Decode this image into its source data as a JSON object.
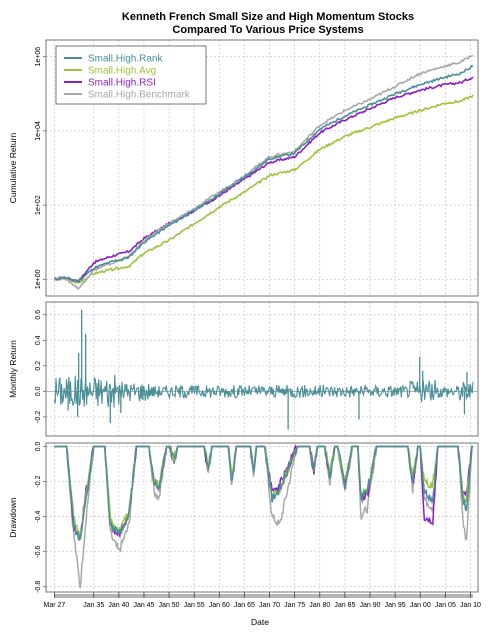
{
  "chart_data": {
    "type": "line",
    "title_lines": [
      "Kenneth French Small Size and High Momentum Stocks",
      "Compared To Various Price Systems"
    ],
    "xlabel": "Date",
    "x_ticks": [
      "Mar 27",
      "Jan 35",
      "Jan 40",
      "Jan 45",
      "Jan 50",
      "Jan 55",
      "Jan 60",
      "Jan 65",
      "Jan 70",
      "Jan 75",
      "Jan 80",
      "Jan 85",
      "Jan 90",
      "Jan 95",
      "Jan 00",
      "Jan 05",
      "Jan 10"
    ],
    "x_tick_years": [
      1927.17,
      1935,
      1940,
      1945,
      1950,
      1955,
      1960,
      1965,
      1970,
      1975,
      1980,
      1985,
      1990,
      1995,
      2000,
      2005,
      2010
    ],
    "xlim": [
      1925.5,
      2011.5
    ],
    "legend": {
      "placement": "top-left",
      "entries": [
        "Small.High.Rank",
        "Small.High.Avg",
        "Small.High.RSI",
        "Small.High.Benchmark"
      ]
    },
    "colors": {
      "rank": "#4a8f98",
      "avg": "#9dc43c",
      "rsi": "#8a1fc4",
      "benchmark": "#a8a8a8"
    },
    "panels": [
      {
        "name": "cumulative",
        "ylabel": "Cumulative Return",
        "scale": "log10",
        "y_ticks": [
          "1e+00",
          "1e+02",
          "1e+04",
          "1e+06"
        ],
        "y_tick_values": [
          0,
          2,
          4,
          6
        ],
        "ylim": [
          -0.45,
          6.45
        ],
        "series": [
          {
            "name": "Small.High.Rank",
            "key": "rank",
            "x": [
              1927.17,
              1929,
              1932,
              1935,
              1938,
              1942,
              1945,
              1950,
              1955,
              1960,
              1965,
              1970,
              1975,
              1980,
              1985,
              1990,
              1995,
              2000,
              2005,
              2008,
              2010.5
            ],
            "log_values": [
              0,
              0.05,
              -0.05,
              0.3,
              0.45,
              0.6,
              1.0,
              1.45,
              1.85,
              2.3,
              2.75,
              3.25,
              3.4,
              4.05,
              4.4,
              4.7,
              5.0,
              5.25,
              5.45,
              5.55,
              5.75
            ]
          },
          {
            "name": "Small.High.Avg",
            "key": "avg",
            "x": [
              1927.17,
              1929,
              1932,
              1935,
              1938,
              1942,
              1945,
              1950,
              1955,
              1960,
              1965,
              1970,
              1975,
              1980,
              1985,
              1990,
              1995,
              2000,
              2005,
              2008,
              2010.5
            ],
            "log_values": [
              0,
              0.02,
              -0.1,
              0.15,
              0.25,
              0.35,
              0.7,
              1.05,
              1.5,
              1.95,
              2.35,
              2.8,
              2.95,
              3.5,
              3.85,
              4.1,
              4.35,
              4.55,
              4.75,
              4.8,
              4.95
            ]
          },
          {
            "name": "Small.High.RSI",
            "key": "rsi",
            "x": [
              1927.17,
              1929,
              1932,
              1935,
              1938,
              1942,
              1945,
              1950,
              1955,
              1960,
              1965,
              1970,
              1975,
              1980,
              1985,
              1990,
              1995,
              2000,
              2005,
              2008,
              2010.5
            ],
            "log_values": [
              0,
              0.05,
              -0.05,
              0.45,
              0.6,
              0.75,
              1.1,
              1.5,
              1.85,
              2.25,
              2.7,
              3.15,
              3.3,
              3.95,
              4.3,
              4.6,
              4.9,
              5.1,
              5.25,
              5.3,
              5.45
            ]
          },
          {
            "name": "Small.High.Benchmark",
            "key": "benchmark",
            "x": [
              1927.17,
              1929,
              1932,
              1935,
              1938,
              1942,
              1945,
              1950,
              1955,
              1960,
              1965,
              1970,
              1975,
              1980,
              1985,
              1990,
              1995,
              2000,
              2005,
              2008,
              2010.5
            ],
            "log_values": [
              0,
              0.05,
              -0.25,
              0.25,
              0.4,
              0.6,
              1.05,
              1.5,
              1.9,
              2.35,
              2.8,
              3.3,
              3.45,
              4.15,
              4.55,
              4.85,
              5.2,
              5.55,
              5.75,
              5.85,
              6.05
            ]
          }
        ]
      },
      {
        "name": "monthly",
        "ylabel": "Monthly Return",
        "y_ticks": [
          "-0.2",
          "0.0",
          "0.2",
          "0.4",
          "0.6"
        ],
        "y_tick_values": [
          -0.2,
          0,
          0.2,
          0.4,
          0.6
        ],
        "ylim": [
          -0.35,
          0.7
        ],
        "series_key": "rank",
        "spikes": [
          {
            "x": 1932.6,
            "y": 0.64
          },
          {
            "x": 1933.4,
            "y": 0.45
          },
          {
            "x": 1931.8,
            "y": -0.2
          },
          {
            "x": 1932.0,
            "y": 0.3
          },
          {
            "x": 1929.9,
            "y": -0.15
          },
          {
            "x": 1938.3,
            "y": -0.25
          },
          {
            "x": 1940.4,
            "y": -0.17
          },
          {
            "x": 1973.7,
            "y": -0.3
          },
          {
            "x": 1987.8,
            "y": -0.22
          },
          {
            "x": 1999.9,
            "y": 0.27
          },
          {
            "x": 2000.5,
            "y": 0.16
          },
          {
            "x": 2008.8,
            "y": -0.18
          },
          {
            "x": 2009.3,
            "y": 0.15
          }
        ]
      },
      {
        "name": "drawdown",
        "ylabel": "Drawdown",
        "y_ticks": [
          "-0.8",
          "-0.6",
          "-0.4",
          "-0.2",
          "0.0"
        ],
        "y_tick_values": [
          -0.8,
          -0.6,
          -0.4,
          -0.2,
          0
        ],
        "ylim": [
          -0.83,
          0.02
        ],
        "episodes": [
          {
            "x": [
              1929.6,
              1931,
              1932.3,
              1933.5,
              1935
            ],
            "rank": [
              0,
              -0.45,
              -0.55,
              -0.3,
              0
            ],
            "avg": [
              0,
              -0.4,
              -0.5,
              -0.28,
              0
            ],
            "rsi": [
              0,
              -0.45,
              -0.52,
              -0.25,
              0
            ],
            "benchmark": [
              0,
              -0.5,
              -0.8,
              -0.4,
              0
            ]
          },
          {
            "x": [
              1937.2,
              1938.3,
              1940,
              1942,
              1943.5
            ],
            "rank": [
              0,
              -0.45,
              -0.5,
              -0.4,
              0
            ],
            "avg": [
              0,
              -0.42,
              -0.48,
              -0.38,
              0
            ],
            "rsi": [
              0,
              -0.45,
              -0.5,
              -0.38,
              0
            ],
            "benchmark": [
              0,
              -0.5,
              -0.6,
              -0.45,
              0
            ]
          },
          {
            "x": [
              1946,
              1947,
              1948,
              1949.5
            ],
            "rank": [
              0,
              -0.2,
              -0.25,
              0
            ],
            "avg": [
              0,
              -0.2,
              -0.22,
              0
            ],
            "rsi": [
              0,
              -0.2,
              -0.24,
              0
            ],
            "benchmark": [
              0,
              -0.25,
              -0.3,
              0
            ]
          },
          {
            "x": [
              1950,
              1951,
              1951.7
            ],
            "rank": [
              0,
              -0.08,
              0
            ],
            "avg": [
              0,
              -0.07,
              0
            ],
            "rsi": [
              0,
              -0.08,
              0
            ],
            "benchmark": [
              0,
              -0.09,
              0
            ]
          },
          {
            "x": [
              1957,
              1957.8,
              1958.5
            ],
            "rank": [
              0,
              -0.14,
              0
            ],
            "avg": [
              0,
              -0.12,
              0
            ],
            "rsi": [
              0,
              -0.14,
              0
            ],
            "benchmark": [
              0,
              -0.16,
              0
            ]
          },
          {
            "x": [
              1961.8,
              1962.5,
              1963.4
            ],
            "rank": [
              0,
              -0.2,
              0
            ],
            "avg": [
              0,
              -0.18,
              0
            ],
            "rsi": [
              0,
              -0.2,
              0
            ],
            "benchmark": [
              0,
              -0.22,
              0
            ]
          },
          {
            "x": [
              1966.2,
              1966.8,
              1967.4
            ],
            "rank": [
              0,
              -0.15,
              0
            ],
            "avg": [
              0,
              -0.14,
              0
            ],
            "rsi": [
              0,
              -0.15,
              0
            ],
            "benchmark": [
              0,
              -0.17,
              0
            ]
          },
          {
            "x": [
              1969,
              1970.5,
              1972,
              1975.5
            ],
            "rank": [
              0,
              -0.3,
              -0.25,
              0
            ],
            "avg": [
              0,
              -0.28,
              -0.25,
              0
            ],
            "rsi": [
              0,
              -0.25,
              -0.22,
              0
            ],
            "benchmark": [
              0,
              -0.4,
              -0.45,
              0
            ]
          },
          {
            "x": [
              1978,
              1978.8,
              1979.5
            ],
            "rank": [
              0,
              -0.15,
              0
            ],
            "avg": [
              0,
              -0.14,
              0
            ],
            "rsi": [
              0,
              -0.15,
              0
            ],
            "benchmark": [
              0,
              -0.16,
              0
            ]
          },
          {
            "x": [
              1981,
              1982,
              1983
            ],
            "rank": [
              0,
              -0.18,
              0
            ],
            "avg": [
              0,
              -0.16,
              0
            ],
            "rsi": [
              0,
              -0.18,
              0
            ],
            "benchmark": [
              0,
              -0.2,
              0
            ]
          },
          {
            "x": [
              1983.5,
              1985,
              1986.5
            ],
            "rank": [
              0,
              -0.22,
              0
            ],
            "avg": [
              0,
              -0.2,
              0
            ],
            "rsi": [
              0,
              -0.22,
              0
            ],
            "benchmark": [
              0,
              -0.25,
              0
            ]
          },
          {
            "x": [
              1987.6,
              1988.2,
              1989.5,
              1991.3
            ],
            "rank": [
              0,
              -0.3,
              -0.25,
              0
            ],
            "avg": [
              0,
              -0.28,
              -0.25,
              0
            ],
            "rsi": [
              0,
              -0.3,
              -0.28,
              0
            ],
            "benchmark": [
              0,
              -0.4,
              -0.35,
              0
            ]
          },
          {
            "x": [
              1997.5,
              1998.5,
              1999.5
            ],
            "rank": [
              0,
              -0.2,
              0
            ],
            "avg": [
              0,
              -0.18,
              0
            ],
            "rsi": [
              0,
              -0.22,
              0
            ],
            "benchmark": [
              0,
              -0.25,
              0
            ]
          },
          {
            "x": [
              2000,
              2000.8,
              2002.5,
              2003.5
            ],
            "rank": [
              0,
              -0.25,
              -0.3,
              0
            ],
            "avg": [
              0,
              -0.2,
              -0.22,
              0
            ],
            "rsi": [
              0,
              -0.4,
              -0.42,
              0
            ],
            "benchmark": [
              0,
              -0.3,
              -0.35,
              0
            ]
          },
          {
            "x": [
              2007.5,
              2008.5,
              2009.2,
              2010.3
            ],
            "rank": [
              0,
              -0.3,
              -0.35,
              0
            ],
            "avg": [
              0,
              -0.28,
              -0.3,
              0
            ],
            "rsi": [
              0,
              -0.28,
              -0.25,
              0
            ],
            "benchmark": [
              0,
              -0.42,
              -0.55,
              0
            ]
          }
        ]
      }
    ]
  }
}
